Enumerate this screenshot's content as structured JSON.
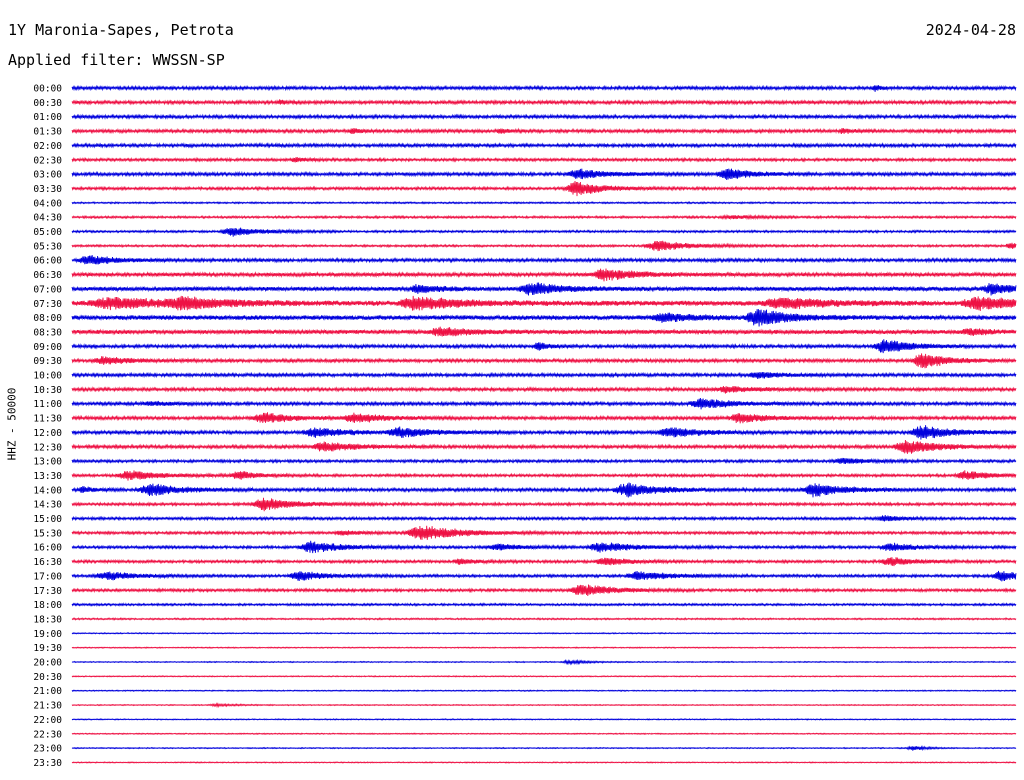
{
  "header": {
    "title": "1Y Maronia-Sapes, Petrota",
    "date": "2024-04-28",
    "filter_label": "Applied filter: WWSSN-SP"
  },
  "colors": {
    "even_trace": "#0000dd",
    "odd_trace": "#ee1144",
    "text": "#000000"
  },
  "chart_data": {
    "type": "line",
    "subtype": "helicorder",
    "ylabel": "HHZ - 50000",
    "x_span_minutes": 30,
    "row_labels": [
      "00:00",
      "00:30",
      "01:00",
      "01:30",
      "02:00",
      "02:30",
      "03:00",
      "03:30",
      "04:00",
      "04:30",
      "05:00",
      "05:30",
      "06:00",
      "06:30",
      "07:00",
      "07:30",
      "08:00",
      "08:30",
      "09:00",
      "09:30",
      "10:00",
      "10:30",
      "11:00",
      "11:30",
      "12:00",
      "12:30",
      "13:00",
      "13:30",
      "14:00",
      "14:30",
      "15:00",
      "15:30",
      "16:00",
      "16:30",
      "17:00",
      "17:30",
      "18:00",
      "18:30",
      "19:00",
      "19:30",
      "20:00",
      "20:30",
      "21:00",
      "21:30",
      "22:00",
      "22:30",
      "23:00",
      "23:30"
    ],
    "noise_level": [
      3,
      3,
      3,
      3,
      3,
      2.5,
      3,
      2.5,
      1.5,
      2,
      2,
      2,
      3,
      3.5,
      4,
      5,
      4.5,
      4,
      3,
      3,
      3,
      3,
      3,
      3,
      3,
      3,
      2.5,
      2.5,
      3,
      2.5,
      2.5,
      2.5,
      2.5,
      2.5,
      2.5,
      2.5,
      2,
      1.5,
      1,
      1,
      1,
      1,
      1,
      1,
      1,
      1,
      1,
      1
    ],
    "bursts": [
      {
        "row": 0,
        "minute": 25.5,
        "amp": 6,
        "dur": 0.3
      },
      {
        "row": 1,
        "minute": 6.6,
        "amp": 5,
        "dur": 0.3
      },
      {
        "row": 3,
        "minute": 8.9,
        "amp": 5,
        "dur": 0.4
      },
      {
        "row": 3,
        "minute": 13.6,
        "amp": 5,
        "dur": 0.4
      },
      {
        "row": 3,
        "minute": 24.5,
        "amp": 5,
        "dur": 0.5
      },
      {
        "row": 5,
        "minute": 7.1,
        "amp": 4,
        "dur": 0.6
      },
      {
        "row": 6,
        "minute": 16.1,
        "amp": 9,
        "dur": 1.5
      },
      {
        "row": 6,
        "minute": 20.8,
        "amp": 12,
        "dur": 1.2
      },
      {
        "row": 7,
        "minute": 16.0,
        "amp": 15,
        "dur": 1.3
      },
      {
        "row": 9,
        "minute": 21.0,
        "amp": 3,
        "dur": 1.5
      },
      {
        "row": 10,
        "minute": 5.1,
        "amp": 9,
        "dur": 1.4
      },
      {
        "row": 11,
        "minute": 18.6,
        "amp": 10,
        "dur": 1.6
      },
      {
        "row": 11,
        "minute": 29.8,
        "amp": 6,
        "dur": 0.5
      },
      {
        "row": 12,
        "minute": 0.5,
        "amp": 10,
        "dur": 1.2
      },
      {
        "row": 13,
        "minute": 16.9,
        "amp": 12,
        "dur": 1.5
      },
      {
        "row": 14,
        "minute": 14.6,
        "amp": 12,
        "dur": 1.5
      },
      {
        "row": 14,
        "minute": 11.0,
        "amp": 8,
        "dur": 1.0
      },
      {
        "row": 14,
        "minute": 29.2,
        "amp": 10,
        "dur": 1.2
      },
      {
        "row": 15,
        "minute": 1.2,
        "amp": 11,
        "dur": 2.5
      },
      {
        "row": 15,
        "minute": 3.5,
        "amp": 10,
        "dur": 2.0
      },
      {
        "row": 15,
        "minute": 10.9,
        "amp": 12,
        "dur": 2.0
      },
      {
        "row": 15,
        "minute": 22.5,
        "amp": 11,
        "dur": 2.0
      },
      {
        "row": 15,
        "minute": 28.8,
        "amp": 12,
        "dur": 2.0
      },
      {
        "row": 16,
        "minute": 21.8,
        "amp": 16,
        "dur": 1.5
      },
      {
        "row": 16,
        "minute": 18.8,
        "amp": 8,
        "dur": 1.5
      },
      {
        "row": 17,
        "minute": 11.7,
        "amp": 8,
        "dur": 1.5
      },
      {
        "row": 17,
        "minute": 28.5,
        "amp": 6,
        "dur": 1.0
      },
      {
        "row": 18,
        "minute": 25.8,
        "amp": 14,
        "dur": 1.3
      },
      {
        "row": 18,
        "minute": 14.8,
        "amp": 8,
        "dur": 0.5
      },
      {
        "row": 19,
        "minute": 1.0,
        "amp": 8,
        "dur": 1.3
      },
      {
        "row": 19,
        "minute": 27.0,
        "amp": 16,
        "dur": 1.2
      },
      {
        "row": 20,
        "minute": 21.8,
        "amp": 6,
        "dur": 1.2
      },
      {
        "row": 21,
        "minute": 20.8,
        "amp": 6,
        "dur": 1.5
      },
      {
        "row": 22,
        "minute": 20.0,
        "amp": 10,
        "dur": 1.5
      },
      {
        "row": 22,
        "minute": 2.5,
        "amp": 4,
        "dur": 1.0
      },
      {
        "row": 23,
        "minute": 6.1,
        "amp": 10,
        "dur": 1.5
      },
      {
        "row": 23,
        "minute": 9.0,
        "amp": 9,
        "dur": 1.5
      },
      {
        "row": 23,
        "minute": 21.2,
        "amp": 10,
        "dur": 1.2
      },
      {
        "row": 24,
        "minute": 7.7,
        "amp": 10,
        "dur": 1.5
      },
      {
        "row": 24,
        "minute": 10.4,
        "amp": 10,
        "dur": 1.5
      },
      {
        "row": 24,
        "minute": 19.0,
        "amp": 10,
        "dur": 1.5
      },
      {
        "row": 24,
        "minute": 27.0,
        "amp": 14,
        "dur": 1.5
      },
      {
        "row": 25,
        "minute": 8.0,
        "amp": 10,
        "dur": 1.5
      },
      {
        "row": 25,
        "minute": 26.5,
        "amp": 14,
        "dur": 1.5
      },
      {
        "row": 26,
        "minute": 24.5,
        "amp": 6,
        "dur": 1.2
      },
      {
        "row": 27,
        "minute": 1.8,
        "amp": 10,
        "dur": 1.5
      },
      {
        "row": 27,
        "minute": 5.3,
        "amp": 8,
        "dur": 1.0
      },
      {
        "row": 27,
        "minute": 28.4,
        "amp": 9,
        "dur": 1.2
      },
      {
        "row": 28,
        "minute": 2.5,
        "amp": 12,
        "dur": 1.5
      },
      {
        "row": 28,
        "minute": 17.6,
        "amp": 14,
        "dur": 1.5
      },
      {
        "row": 28,
        "minute": 23.6,
        "amp": 14,
        "dur": 1.5
      },
      {
        "row": 28,
        "minute": 0.3,
        "amp": 6,
        "dur": 0.5
      },
      {
        "row": 29,
        "minute": 6.1,
        "amp": 12,
        "dur": 1.5
      },
      {
        "row": 30,
        "minute": 25.8,
        "amp": 6,
        "dur": 0.8
      },
      {
        "row": 31,
        "minute": 11.1,
        "amp": 14,
        "dur": 2.0
      },
      {
        "row": 31,
        "minute": 8.6,
        "amp": 4,
        "dur": 1.0
      },
      {
        "row": 32,
        "minute": 7.6,
        "amp": 11,
        "dur": 1.5
      },
      {
        "row": 32,
        "minute": 16.8,
        "amp": 10,
        "dur": 1.5
      },
      {
        "row": 32,
        "minute": 13.5,
        "amp": 6,
        "dur": 1.2
      },
      {
        "row": 32,
        "minute": 26.0,
        "amp": 8,
        "dur": 1.2
      },
      {
        "row": 33,
        "minute": 16.9,
        "amp": 8,
        "dur": 1.2
      },
      {
        "row": 33,
        "minute": 26.0,
        "amp": 8,
        "dur": 1.2
      },
      {
        "row": 33,
        "minute": 12.3,
        "amp": 6,
        "dur": 0.8
      },
      {
        "row": 34,
        "minute": 1.1,
        "amp": 8,
        "dur": 1.5
      },
      {
        "row": 34,
        "minute": 7.2,
        "amp": 10,
        "dur": 1.2
      },
      {
        "row": 34,
        "minute": 18.0,
        "amp": 10,
        "dur": 1.5
      },
      {
        "row": 34,
        "minute": 29.5,
        "amp": 10,
        "dur": 1.0
      },
      {
        "row": 35,
        "minute": 16.2,
        "amp": 12,
        "dur": 1.5
      },
      {
        "row": 40,
        "minute": 15.8,
        "amp": 3,
        "dur": 1.0
      },
      {
        "row": 43,
        "minute": 4.6,
        "amp": 2,
        "dur": 1.0
      },
      {
        "row": 46,
        "minute": 26.7,
        "amp": 5,
        "dur": 0.6
      }
    ]
  }
}
